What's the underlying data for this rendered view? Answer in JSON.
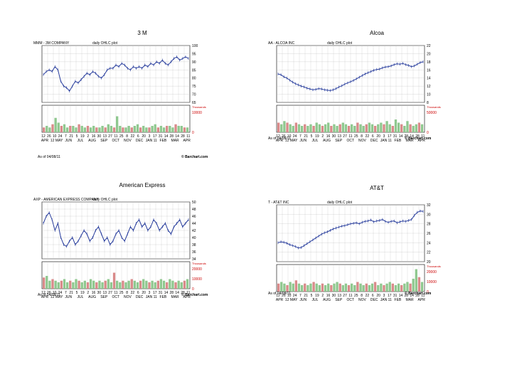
{
  "slide": {
    "credit_label": "© Barchart.com",
    "as_of_label": "As of 04/08/11"
  },
  "chart_data": [
    {
      "type": "ohlc",
      "title": "3 M",
      "subtitle": "MMM - 3M COMPANY",
      "plot_label": "daily OHLC plot",
      "ylim": [
        65,
        100
      ],
      "yticks": [
        65,
        70,
        75,
        80,
        85,
        90,
        95,
        100
      ],
      "volume_ticks": [
        "10000",
        "0"
      ],
      "volume_unit": "Thousands",
      "x_day_labels": [
        "12",
        "26",
        "10",
        "24",
        "7",
        "21",
        "5",
        "19",
        "2",
        "16",
        "30",
        "13",
        "27",
        "11",
        "25",
        "8",
        "22",
        "6",
        "20",
        "3",
        "17",
        "31",
        "14",
        "28",
        "14",
        "28",
        "11"
      ],
      "x_month_labels": [
        "APR",
        "12 MAY",
        "JUN",
        "JUL",
        "AUG",
        "SEP",
        "OCT",
        "NOV",
        "DEC",
        "JAN 11",
        "FEB",
        "MAR",
        "APR"
      ],
      "price_path": [
        82,
        84,
        85,
        84,
        87,
        85,
        78,
        75,
        74,
        72,
        75,
        78,
        77,
        79,
        81,
        83,
        82,
        84,
        83,
        81,
        80,
        82,
        85,
        86,
        86,
        88,
        87,
        89,
        88,
        86,
        85,
        87,
        86,
        87,
        86,
        88,
        87,
        89,
        88,
        90,
        89,
        91,
        89,
        88,
        90,
        92,
        93,
        91,
        92,
        93,
        92
      ],
      "volume_path": [
        3,
        4,
        3,
        5,
        9,
        6,
        4,
        5,
        3,
        4,
        4,
        3,
        5,
        4,
        3,
        4,
        3,
        4,
        3,
        3,
        4,
        3,
        5,
        4,
        3,
        10,
        4,
        3,
        3,
        4,
        3,
        4,
        5,
        3,
        4,
        3,
        3,
        4,
        5,
        3,
        4,
        3,
        4,
        4,
        3,
        5,
        4,
        4,
        3,
        3
      ]
    },
    {
      "type": "ohlc",
      "title": "Alcoa",
      "subtitle": "AA - ALCOA INC",
      "plot_label": "daily OHLC plot",
      "ylim": [
        8,
        22
      ],
      "yticks": [
        8,
        10,
        12,
        14,
        16,
        18,
        20,
        22
      ],
      "volume_ticks": [
        "50000",
        "0"
      ],
      "volume_unit": "Thousands",
      "x_day_labels": [
        "12",
        "26",
        "10",
        "24",
        "7",
        "21",
        "5",
        "19",
        "2",
        "16",
        "30",
        "13",
        "27",
        "11",
        "25",
        "8",
        "22",
        "6",
        "20",
        "3",
        "17",
        "31",
        "14",
        "28",
        "14",
        "28",
        "11"
      ],
      "x_month_labels": [
        "APR",
        "12 MAY",
        "JUN",
        "JUL",
        "AUG",
        "SEP",
        "OCT",
        "NOV",
        "DEC",
        "JAN 11",
        "FEB",
        "MAR",
        "APR"
      ],
      "price_path": [
        15,
        14.8,
        14.3,
        14,
        13.5,
        13,
        12.6,
        12.3,
        12,
        11.8,
        11.5,
        11.3,
        11.1,
        11.2,
        11.4,
        11.3,
        11.1,
        11,
        10.9,
        11.1,
        11.4,
        11.8,
        12.1,
        12.5,
        12.8,
        13.1,
        13.4,
        13.8,
        14.2,
        14.6,
        15,
        15.3,
        15.6,
        15.9,
        16.1,
        16.2,
        16.5,
        16.7,
        16.8,
        17,
        17.3,
        17.5,
        17.4,
        17.6,
        17.3,
        17.1,
        16.8,
        17,
        17.4,
        17.8,
        18
      ],
      "volume_path": [
        6,
        5,
        7,
        6,
        5,
        4,
        6,
        5,
        4,
        5,
        4,
        5,
        4,
        6,
        5,
        4,
        5,
        6,
        4,
        5,
        4,
        5,
        6,
        5,
        4,
        5,
        4,
        6,
        5,
        4,
        5,
        6,
        5,
        4,
        5,
        6,
        5,
        7,
        5,
        4,
        8,
        6,
        5,
        4,
        7,
        5,
        4,
        5,
        6,
        5
      ]
    },
    {
      "type": "ohlc",
      "title": "American Express",
      "subtitle": "AXP - AMERICAN EXPRESS COMPANY",
      "plot_label": "daily OHLC plot",
      "ylim": [
        34,
        50
      ],
      "yticks": [
        34,
        36,
        38,
        40,
        42,
        44,
        46,
        48,
        50
      ],
      "volume_ticks": [
        "20000",
        "10000",
        "0"
      ],
      "volume_unit": "Thousands",
      "x_day_labels": [
        "12",
        "26",
        "10",
        "24",
        "7",
        "21",
        "5",
        "19",
        "2",
        "16",
        "30",
        "13",
        "27",
        "11",
        "25",
        "8",
        "22",
        "6",
        "20",
        "3",
        "17",
        "31",
        "14",
        "28",
        "14",
        "28",
        "11"
      ],
      "x_month_labels": [
        "APR",
        "12 MAY",
        "JUN",
        "JUL",
        "AUG",
        "SEP",
        "OCT",
        "NOV",
        "DEC",
        "JAN 11",
        "FEB",
        "MAR",
        "APR"
      ],
      "price_path": [
        44,
        46,
        47,
        45,
        42,
        44,
        40,
        38,
        37.5,
        39,
        40,
        38,
        39,
        40.5,
        42,
        41,
        39,
        40,
        42,
        43,
        41,
        39,
        40,
        38,
        39,
        41,
        42,
        40,
        39,
        41,
        43,
        42,
        44,
        45,
        43,
        44,
        42,
        43,
        45,
        44,
        42,
        43,
        44,
        42,
        41,
        43,
        44,
        45,
        43,
        44,
        45
      ],
      "volume_path": [
        7,
        8,
        5,
        6,
        5,
        4,
        5,
        6,
        4,
        5,
        4,
        6,
        5,
        4,
        5,
        4,
        6,
        5,
        4,
        5,
        4,
        5,
        6,
        4,
        10,
        5,
        4,
        5,
        4,
        5,
        6,
        5,
        4,
        5,
        6,
        5,
        4,
        5,
        4,
        5,
        6,
        5,
        4,
        6,
        5,
        4,
        5,
        4,
        5,
        6
      ]
    },
    {
      "type": "ohlc",
      "title": "AT&T",
      "subtitle": "T - AT&T INC",
      "plot_label": "daily OHLC plot",
      "ylim": [
        20,
        32
      ],
      "yticks": [
        20,
        22,
        24,
        26,
        28,
        30,
        32
      ],
      "volume_ticks": [
        "20000",
        "10000",
        "0"
      ],
      "volume_unit": "Thousands",
      "x_day_labels": [
        "12",
        "26",
        "10",
        "24",
        "7",
        "21",
        "5",
        "19",
        "2",
        "16",
        "30",
        "13",
        "27",
        "11",
        "25",
        "8",
        "22",
        "6",
        "20",
        "3",
        "17",
        "31",
        "14",
        "28",
        "14",
        "28",
        "11"
      ],
      "x_month_labels": [
        "APR",
        "12 MAY",
        "JUN",
        "JUL",
        "AUG",
        "SEP",
        "OCT",
        "NOV",
        "DEC",
        "JAN 11",
        "FEB",
        "MAR",
        "APR"
      ],
      "price_path": [
        24,
        24.2,
        24.1,
        23.9,
        23.6,
        23.4,
        23.2,
        22.9,
        23,
        23.4,
        23.8,
        24.2,
        24.6,
        25,
        25.4,
        25.8,
        26.1,
        26.3,
        26.6,
        26.9,
        27.1,
        27.3,
        27.5,
        27.6,
        27.8,
        28,
        28.1,
        28.2,
        28,
        28.3,
        28.5,
        28.6,
        28.8,
        28.4,
        28.6,
        28.7,
        28.9,
        28.5,
        28.3,
        28.5,
        28.6,
        28.2,
        28.4,
        28.6,
        28.5,
        28.7,
        28.9,
        29.8,
        30.4,
        30.7,
        30.6
      ],
      "volume_path": [
        5,
        6,
        5,
        4,
        6,
        5,
        7,
        5,
        4,
        5,
        4,
        5,
        6,
        5,
        4,
        5,
        4,
        5,
        4,
        5,
        6,
        5,
        4,
        5,
        4,
        5,
        4,
        6,
        5,
        4,
        5,
        4,
        5,
        6,
        4,
        5,
        4,
        5,
        6,
        5,
        4,
        5,
        4,
        5,
        6,
        5,
        8,
        14,
        9,
        6
      ]
    }
  ]
}
